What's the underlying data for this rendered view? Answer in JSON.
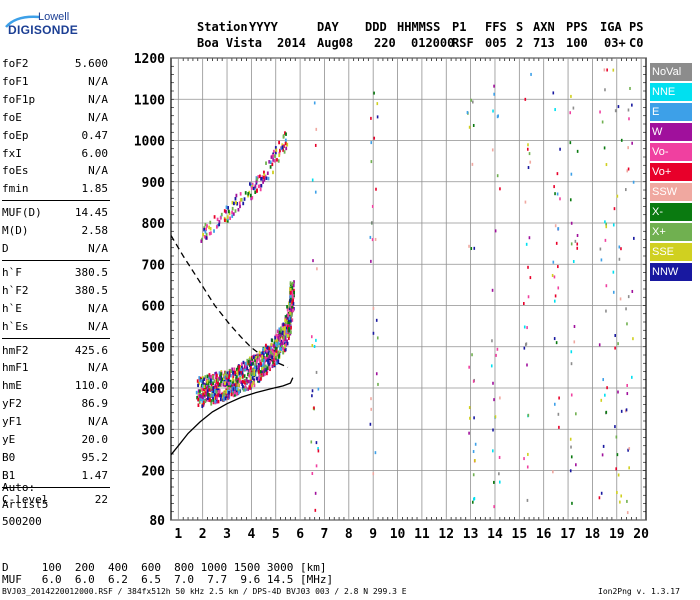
{
  "logo": {
    "top": "Lowell",
    "bottom": "DIGISONDE"
  },
  "header": {
    "station_label": "Station",
    "station_name": "Boa Vista",
    "cols": [
      {
        "label": "YYYY",
        "value": "2014"
      },
      {
        "label": "DAY",
        "value": "Aug08"
      },
      {
        "label": "DDD",
        "value": "220"
      },
      {
        "label": "HHMMSS",
        "value": "012000"
      },
      {
        "label": "P1",
        "value": "RSF"
      },
      {
        "label": "FFS",
        "value": "005"
      },
      {
        "label": "S",
        "value": "2"
      },
      {
        "label": "AXN",
        "value": "713"
      },
      {
        "label": "PPS",
        "value": "100"
      },
      {
        "label": "IGA",
        "value": "03+"
      },
      {
        "label": "PS",
        "value": "C0"
      }
    ]
  },
  "params": {
    "group1": [
      {
        "label": "foF2",
        "value": "5.600"
      },
      {
        "label": "foF1",
        "value": "N/A"
      },
      {
        "label": "foF1p",
        "value": "N/A"
      },
      {
        "label": "foE",
        "value": "N/A"
      },
      {
        "label": "foEp",
        "value": "0.47"
      },
      {
        "label": "fxI",
        "value": "6.00"
      },
      {
        "label": "foEs",
        "value": "N/A"
      },
      {
        "label": "fmin",
        "value": "1.85"
      }
    ],
    "group2": [
      {
        "label": "MUF(D)",
        "value": "14.45"
      },
      {
        "label": "M(D)",
        "value": "2.58"
      },
      {
        "label": "D",
        "value": "N/A"
      }
    ],
    "group3": [
      {
        "label": "h`F",
        "value": "380.5"
      },
      {
        "label": "h`F2",
        "value": "380.5"
      },
      {
        "label": "h`E",
        "value": "N/A"
      },
      {
        "label": "h`Es",
        "value": "N/A"
      }
    ],
    "group4": [
      {
        "label": "hmF2",
        "value": "425.6"
      },
      {
        "label": "hmF1",
        "value": "N/A"
      },
      {
        "label": "hmE",
        "value": "110.0"
      },
      {
        "label": "yF2",
        "value": "86.9"
      },
      {
        "label": "yF1",
        "value": "N/A"
      },
      {
        "label": "yE",
        "value": "20.0"
      },
      {
        "label": "B0",
        "value": "95.2"
      },
      {
        "label": "B1",
        "value": "1.47"
      }
    ],
    "group5": [
      {
        "label": "C-level",
        "value": "22"
      }
    ]
  },
  "auto": {
    "line1": "Auto:",
    "line2": "Artist5",
    "line3": "500200"
  },
  "legend": [
    {
      "label": "NoVal",
      "color": "#8c8c8c"
    },
    {
      "label": "NNE",
      "color": "#00e0f0"
    },
    {
      "label": "E",
      "color": "#3da0e8"
    },
    {
      "label": "W",
      "color": "#a0109c"
    },
    {
      "label": "Vo-",
      "color": "#f040a0"
    },
    {
      "label": "Vo+",
      "color": "#e8002a"
    },
    {
      "label": "SSW",
      "color": "#f0a8a0"
    },
    {
      "label": "X-",
      "color": "#0a7a10"
    },
    {
      "label": "X+",
      "color": "#70b050"
    },
    {
      "label": "SSE",
      "color": "#d0d020"
    },
    {
      "label": "NNW",
      "color": "#1818a0"
    }
  ],
  "bottom": {
    "row1": "D     100  200  400  600  800 1000 1500 3000 [km]",
    "row2": "MUF   6.0  6.0  6.2  6.5  7.0  7.7  9.6 14.5 [MHz]"
  },
  "footer": {
    "left": "BVJ03_2014220012000.RSF / 384fx512h 50 kHz 2.5 km / DPS-4D BVJ03 003 / 2.8 N 299.3 E",
    "right": "Ion2Png v. 1.3.17"
  },
  "chart_data": {
    "type": "scatter",
    "xlim": [
      0.7,
      20.2
    ],
    "ylim": [
      80,
      1200
    ],
    "x_ticks": [
      1,
      2,
      3,
      4,
      5,
      6,
      7,
      8,
      9,
      10,
      11,
      12,
      13,
      14,
      15,
      16,
      17,
      18,
      19,
      20
    ],
    "y_ticks": [
      80,
      200,
      300,
      400,
      500,
      600,
      700,
      800,
      900,
      1000,
      1100,
      1200
    ],
    "grid": true,
    "series": [
      {
        "kind": "curve",
        "style": "dashed",
        "x": [
          0.7,
          1.2,
          1.8,
          2.5,
          3.1,
          3.6,
          4.0,
          4.4,
          4.8,
          5.2,
          5.5
        ],
        "y": [
          770,
          720,
          665,
          600,
          555,
          522,
          498,
          480,
          468,
          458,
          450
        ]
      },
      {
        "kind": "curve",
        "style": "solid",
        "x": [
          0.7,
          1.0,
          1.4,
          1.9,
          2.4,
          3.0,
          3.6,
          4.2,
          4.8,
          5.3,
          5.6,
          5.7
        ],
        "y": [
          238,
          260,
          290,
          318,
          342,
          362,
          378,
          389,
          398,
          405,
          412,
          425
        ]
      },
      {
        "kind": "trace",
        "name": "F2 trace",
        "x": [
          1.8,
          2.2,
          2.6,
          3.0,
          3.4,
          3.8,
          4.2,
          4.6,
          5.0,
          5.3,
          5.5,
          5.6,
          5.65
        ],
        "y": [
          380,
          385,
          392,
          400,
          410,
          422,
          438,
          458,
          485,
          515,
          550,
          590,
          620
        ]
      },
      {
        "kind": "trace",
        "name": "upper echoes",
        "x": [
          1.9,
          2.4,
          3.0,
          3.5,
          4.0,
          4.4,
          4.8,
          5.2,
          5.4
        ],
        "y": [
          770,
          790,
          820,
          850,
          880,
          900,
          940,
          980,
          1000
        ]
      }
    ]
  }
}
